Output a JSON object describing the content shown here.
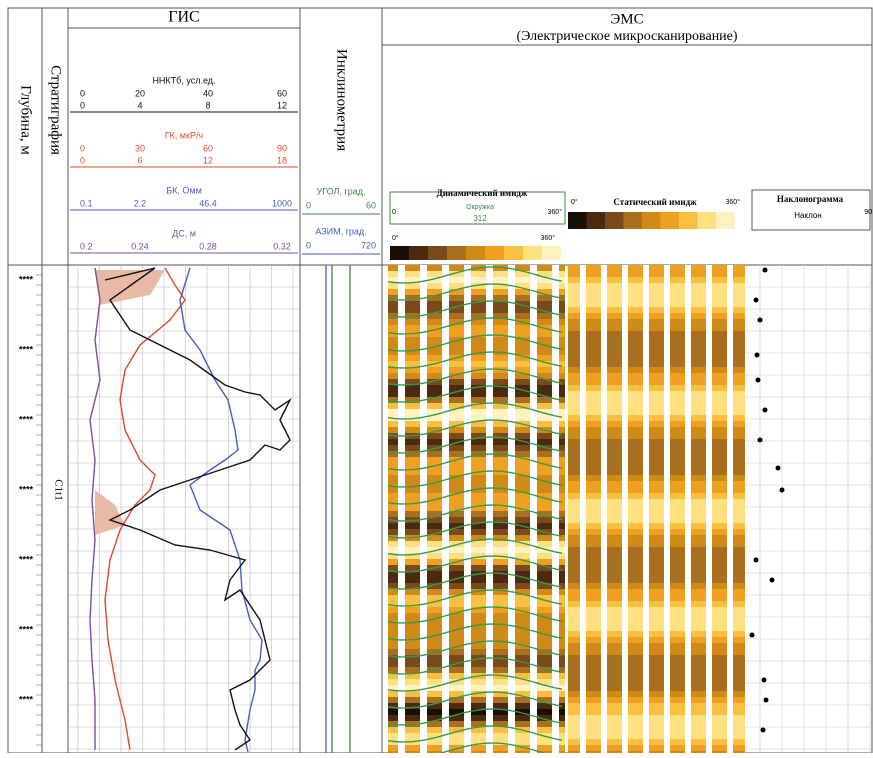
{
  "header": {
    "depth": "Глубина, м",
    "stratigraphy": "Стратиграфия",
    "gis": "ГИС",
    "inclinometry": "Инклинометрия",
    "ems": "ЭМС",
    "ems_subtitle": "(Электрическое микросканирование)"
  },
  "gis_scales": [
    {
      "name": "ННКТб, усл.ед.",
      "rows": [
        [
          "0",
          "20",
          "40",
          "60"
        ],
        [
          "0",
          "4",
          "8",
          "12"
        ]
      ]
    },
    {
      "name": "ГК, мкР/ч",
      "rows": [
        [
          "0",
          "30",
          "60",
          "90"
        ],
        [
          "0",
          "6",
          "12",
          "18"
        ]
      ]
    },
    {
      "name": "БК, Омм",
      "rows": [
        [
          "0.1",
          "2.2",
          "46.4",
          "1000"
        ]
      ]
    },
    {
      "name": "ДС, м",
      "rows": [
        [
          "0.2",
          "0.24",
          "0.28",
          "0.32"
        ]
      ]
    }
  ],
  "incl_scales": [
    {
      "name": "УГОЛ, град.",
      "min": "0",
      "max": "60"
    },
    {
      "name": "АЗИМ, град.",
      "min": "0",
      "max": "720"
    }
  ],
  "ems_legend": {
    "dynamic": "Динамический имидж",
    "dynamic_sub": "Окружка",
    "dynamic_value": "312",
    "dynamic_min": "0",
    "dynamic_max": "360°",
    "dyn_bar_min": "0°",
    "dyn_bar_max": "360°",
    "static": "Статический имидж",
    "static_min": "0°",
    "static_max": "360°",
    "dip": "Наклонограмма",
    "dip_sub": "Наклон",
    "dip_max": "90"
  },
  "depth_labels": [
    "****",
    "****",
    "****",
    "****",
    "****",
    "****",
    "****"
  ],
  "stratigraphy_label": "C1t1"
}
